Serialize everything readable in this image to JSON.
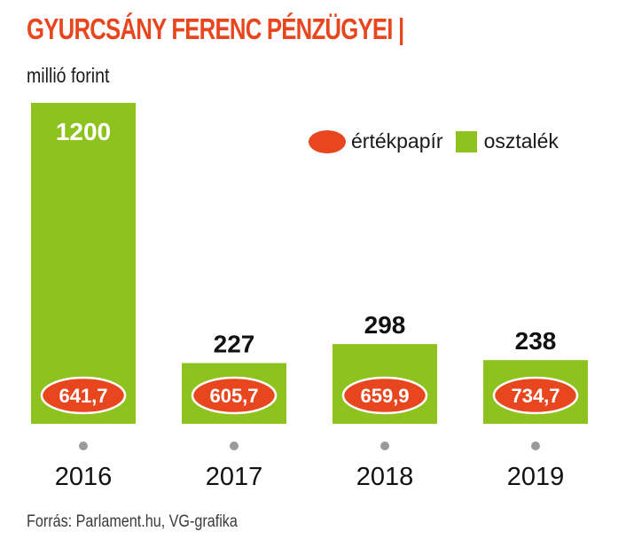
{
  "title": "GYURCSÁNY FERENC PÉNZÜGYEI |",
  "unit": "millió forint",
  "source": "Forrás: Parlament.hu, VG-grafika",
  "legend": {
    "ellipse_label": "értékpapír",
    "square_label": "osztalék"
  },
  "colors": {
    "ertekpapir": "#e8461e",
    "osztalek": "#8dc21f",
    "axis_dot": "#9a9a9a"
  },
  "chart_data": {
    "type": "bar",
    "categories": [
      "2016",
      "2017",
      "2018",
      "2019"
    ],
    "series": [
      {
        "name": "osztalék",
        "values": [
          1200,
          227,
          298,
          238
        ],
        "labels": [
          "1200",
          "227",
          "298",
          "238"
        ]
      },
      {
        "name": "értékpapír",
        "values": [
          641.7,
          605.7,
          659.9,
          734.7
        ],
        "labels": [
          "641,7",
          "605,7",
          "659,9",
          "734,7"
        ]
      }
    ],
    "title": "GYURCSÁNY FERENC PÉNZÜGYEI |",
    "ylabel": "millió forint",
    "legend_position": "top-right",
    "grid": false
  }
}
